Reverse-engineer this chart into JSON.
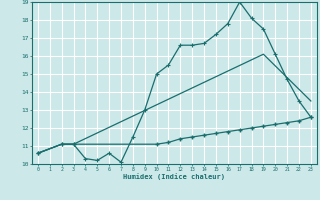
{
  "xlabel": "Humidex (Indice chaleur)",
  "bg_color": "#cce8e8",
  "grid_color": "#ffffff",
  "line_color": "#1a6e6e",
  "xlim": [
    -0.5,
    23.5
  ],
  "ylim": [
    10,
    19
  ],
  "xticks": [
    0,
    1,
    2,
    3,
    4,
    5,
    6,
    7,
    8,
    9,
    10,
    11,
    12,
    13,
    14,
    15,
    16,
    17,
    18,
    19,
    20,
    21,
    22,
    23
  ],
  "yticks": [
    10,
    11,
    12,
    13,
    14,
    15,
    16,
    17,
    18,
    19
  ],
  "line1_x": [
    0,
    2,
    3,
    4,
    5,
    6,
    7,
    8,
    9,
    10,
    11,
    12,
    13,
    14,
    15,
    16,
    17,
    18,
    19,
    20,
    21,
    22,
    23
  ],
  "line1_y": [
    10.6,
    11.1,
    11.1,
    10.3,
    10.2,
    10.6,
    10.1,
    11.5,
    13.0,
    15.0,
    15.5,
    16.6,
    16.6,
    16.7,
    17.2,
    17.8,
    19.0,
    18.1,
    17.5,
    16.1,
    14.7,
    13.5,
    12.6
  ],
  "line2_x": [
    0,
    2,
    3,
    19,
    23
  ],
  "line2_y": [
    10.6,
    11.1,
    11.1,
    16.1,
    13.5
  ],
  "line3_x": [
    0,
    2,
    3,
    10,
    11,
    12,
    13,
    14,
    15,
    16,
    17,
    18,
    19,
    20,
    21,
    22,
    23
  ],
  "line3_y": [
    10.6,
    11.1,
    11.1,
    11.1,
    11.2,
    11.4,
    11.5,
    11.6,
    11.7,
    11.8,
    11.9,
    12.0,
    12.1,
    12.2,
    12.3,
    12.4,
    12.6
  ]
}
